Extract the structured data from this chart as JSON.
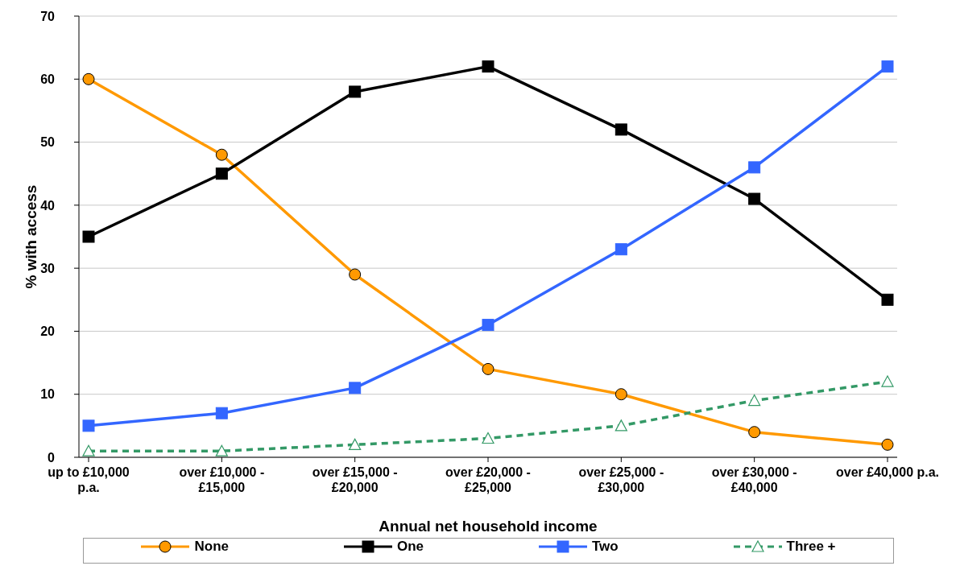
{
  "chart_data": {
    "type": "line",
    "xlabel": "Annual net household income",
    "ylabel": "% with access",
    "categories": [
      "up to £10,000 p.a.",
      "over £10,000 - £15,000",
      "over £15,000 - £20,000",
      "over £20,000 - £25,000",
      "over £25,000 - £30,000",
      "over £30,000 - £40,000",
      "over £40,000 p.a."
    ],
    "series": [
      {
        "name": "None",
        "color": "#ff9900",
        "marker": "circle",
        "line_style": "solid",
        "values": [
          60,
          48,
          29,
          14,
          10,
          4,
          2
        ]
      },
      {
        "name": "One",
        "color": "#000000",
        "marker": "square",
        "line_style": "solid",
        "values": [
          35,
          45,
          58,
          62,
          52,
          41,
          25
        ]
      },
      {
        "name": "Two",
        "color": "#3366ff",
        "marker": "square",
        "line_style": "solid",
        "values": [
          5,
          7,
          11,
          21,
          33,
          46,
          62
        ]
      },
      {
        "name": "Three +",
        "color": "#339966",
        "marker": "triangle",
        "line_style": "dashed",
        "values": [
          1,
          1,
          2,
          3,
          5,
          9,
          12
        ]
      }
    ],
    "ylim": [
      0,
      70
    ],
    "yticks": [
      0,
      10,
      20,
      30,
      40,
      50,
      60,
      70
    ],
    "grid": "y",
    "legend": "bottom"
  }
}
